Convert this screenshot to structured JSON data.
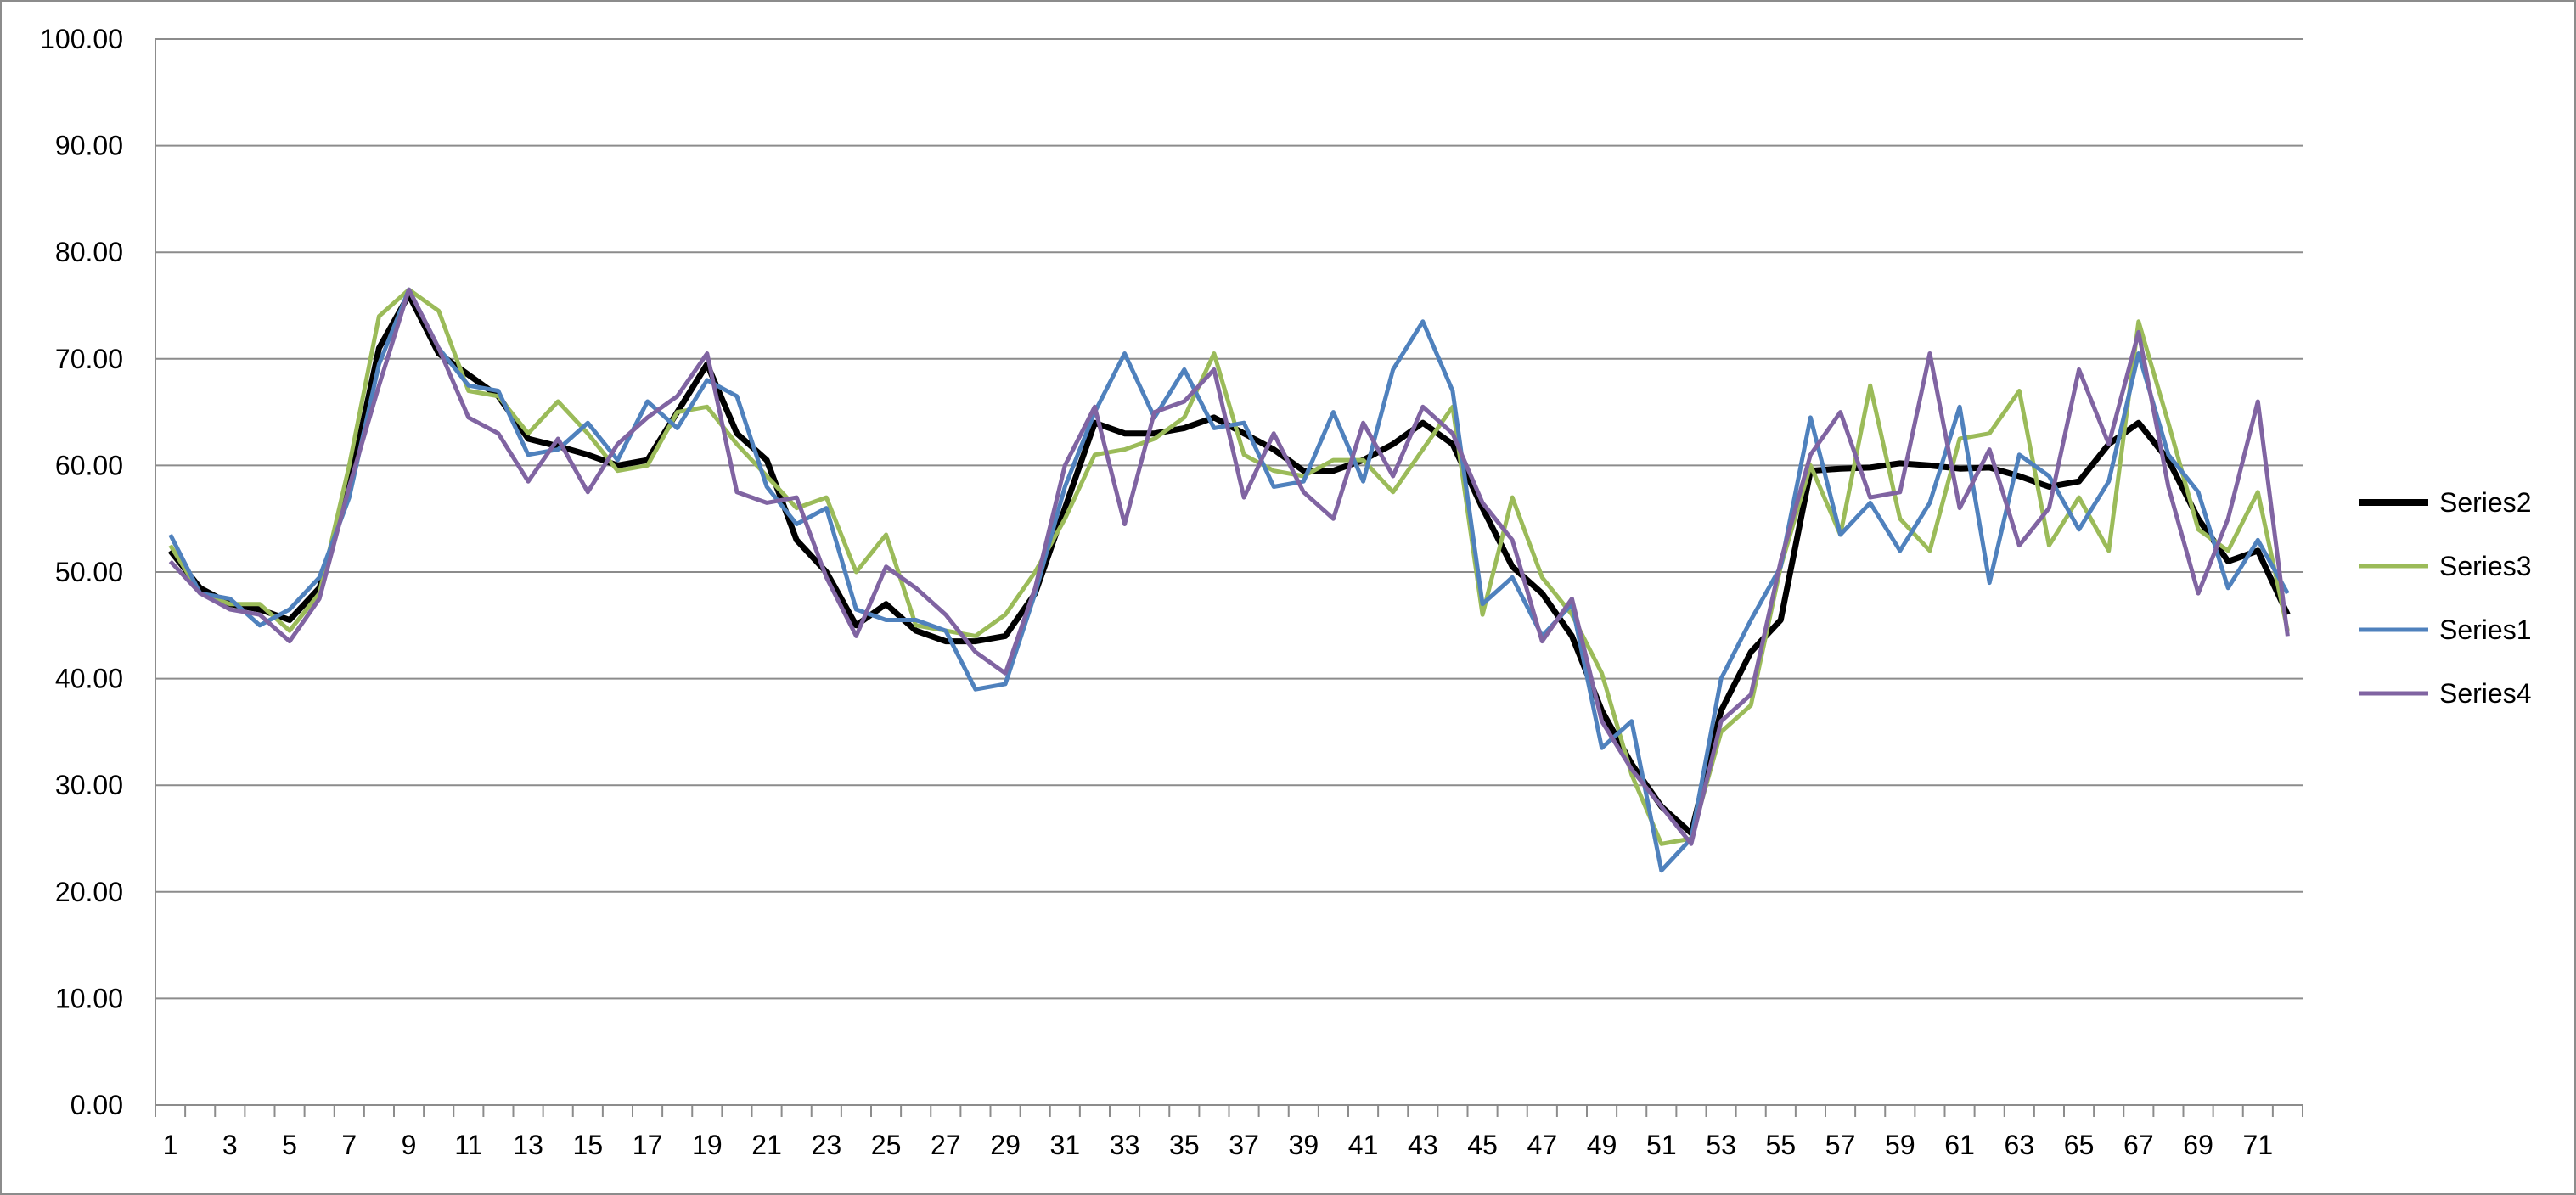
{
  "chart_data": {
    "type": "line",
    "title": "",
    "xlabel": "",
    "ylabel": "",
    "ylim": [
      0,
      100
    ],
    "y_ticks": [
      "0.00",
      "10.00",
      "20.00",
      "30.00",
      "40.00",
      "50.00",
      "60.00",
      "70.00",
      "80.00",
      "90.00",
      "100.00"
    ],
    "x": [
      1,
      2,
      3,
      4,
      5,
      6,
      7,
      8,
      9,
      10,
      11,
      12,
      13,
      14,
      15,
      16,
      17,
      18,
      19,
      20,
      21,
      22,
      23,
      24,
      25,
      26,
      27,
      28,
      29,
      30,
      31,
      32,
      33,
      34,
      35,
      36,
      37,
      38,
      39,
      40,
      41,
      42,
      43,
      44,
      45,
      46,
      47,
      48,
      49,
      50,
      51,
      52,
      53,
      54,
      55,
      56,
      57,
      58,
      59,
      60,
      61,
      62,
      63,
      64,
      65,
      66,
      67,
      68,
      69,
      70,
      71,
      72
    ],
    "x_tick_labels": [
      "1",
      "3",
      "5",
      "7",
      "9",
      "11",
      "13",
      "15",
      "17",
      "19",
      "21",
      "23",
      "25",
      "27",
      "29",
      "31",
      "33",
      "35",
      "37",
      "39",
      "41",
      "43",
      "45",
      "47",
      "49",
      "51",
      "53",
      "55",
      "57",
      "59",
      "61",
      "63",
      "65",
      "67",
      "69",
      "71"
    ],
    "grid": true,
    "legend_position": "right",
    "series": [
      {
        "name": "Series2",
        "color": "#000000",
        "values": [
          52.0,
          48.5,
          47.0,
          46.5,
          45.5,
          48.5,
          58.0,
          71.0,
          76.0,
          70.5,
          68.5,
          66.5,
          62.5,
          61.8,
          61.0,
          60.0,
          60.5,
          65.0,
          69.5,
          63.0,
          60.5,
          53.0,
          50.0,
          45.0,
          47.0,
          44.5,
          43.5,
          43.5,
          44.0,
          48.0,
          56.0,
          64.0,
          63.0,
          63.0,
          63.5,
          64.5,
          63.0,
          61.5,
          59.5,
          59.5,
          60.5,
          62.0,
          64.0,
          62.0,
          56.0,
          50.5,
          48.0,
          44.0,
          37.0,
          32.0,
          28.0,
          25.5,
          37.0,
          42.5,
          45.5,
          59.5,
          59.7,
          59.8,
          60.2,
          60.0,
          59.7,
          59.8,
          59.0,
          58.0,
          58.5,
          62.0,
          64.0,
          60.5,
          55.0,
          51.0,
          52.0,
          46.0
        ]
      },
      {
        "name": "Series3",
        "color": "#9bbb59",
        "values": [
          52.5,
          48.0,
          47.0,
          47.0,
          44.5,
          48.0,
          60.0,
          74.0,
          76.5,
          74.5,
          67.0,
          66.5,
          63.0,
          66.0,
          63.0,
          59.5,
          60.0,
          65.0,
          65.5,
          62.0,
          59.0,
          56.0,
          57.0,
          50.0,
          53.5,
          45.0,
          44.5,
          44.0,
          46.0,
          50.0,
          55.0,
          61.0,
          61.5,
          62.5,
          64.5,
          70.5,
          61.0,
          59.5,
          59.0,
          60.5,
          60.5,
          57.5,
          61.5,
          65.5,
          46.0,
          57.0,
          49.5,
          46.0,
          40.5,
          31.0,
          24.5,
          25.0,
          35.0,
          37.5,
          50.5,
          60.0,
          53.5,
          67.5,
          55.0,
          52.0,
          62.5,
          63.0,
          67.0,
          52.5,
          57.0,
          52.0,
          73.5,
          64.0,
          54.0,
          52.0,
          57.5,
          44.5
        ]
      },
      {
        "name": "Series1",
        "color": "#4f81bd",
        "values": [
          53.5,
          48.0,
          47.5,
          45.0,
          46.5,
          49.5,
          57.0,
          69.5,
          76.5,
          71.0,
          67.5,
          67.0,
          61.0,
          61.5,
          64.0,
          60.5,
          66.0,
          63.5,
          68.0,
          66.5,
          58.0,
          54.5,
          56.0,
          46.5,
          45.5,
          45.5,
          44.5,
          39.0,
          39.5,
          48.0,
          58.0,
          65.0,
          70.5,
          64.5,
          69.0,
          63.5,
          64.0,
          58.0,
          58.5,
          65.0,
          58.5,
          69.0,
          73.5,
          67.0,
          47.0,
          49.5,
          44.0,
          47.0,
          33.5,
          36.0,
          22.0,
          25.0,
          40.0,
          45.5,
          50.5,
          64.5,
          53.5,
          56.5,
          52.0,
          56.5,
          65.5,
          49.0,
          61.0,
          59.0,
          54.0,
          58.5,
          70.5,
          61.0,
          57.5,
          48.5,
          53.0,
          48.0
        ]
      },
      {
        "name": "Series4",
        "color": "#8064a2",
        "values": [
          51.0,
          48.0,
          46.5,
          46.0,
          43.5,
          47.5,
          58.0,
          67.5,
          76.5,
          71.0,
          64.5,
          63.0,
          58.5,
          62.5,
          57.5,
          62.0,
          64.5,
          66.5,
          70.5,
          57.5,
          56.5,
          57.0,
          49.5,
          44.0,
          50.5,
          48.5,
          46.0,
          42.5,
          40.5,
          48.5,
          60.0,
          65.5,
          54.5,
          65.0,
          66.0,
          69.0,
          57.0,
          63.0,
          57.5,
          55.0,
          64.0,
          59.0,
          65.5,
          63.0,
          56.5,
          53.0,
          43.5,
          47.5,
          36.0,
          31.5,
          28.0,
          24.5,
          36.0,
          38.5,
          51.0,
          61.0,
          65.0,
          57.0,
          57.5,
          70.5,
          56.0,
          61.5,
          52.5,
          56.0,
          69.0,
          62.0,
          72.5,
          58.0,
          48.0,
          55.0,
          66.0,
          44.0
        ]
      }
    ],
    "legend_order": [
      "Series2",
      "Series3",
      "Series1",
      "Series4"
    ]
  }
}
